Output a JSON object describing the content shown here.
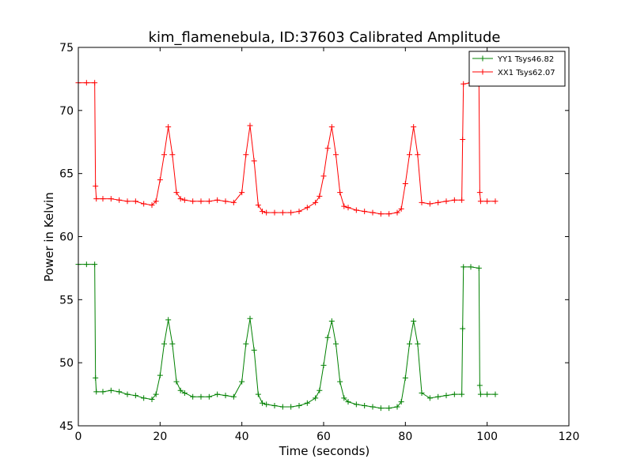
{
  "chart_data": {
    "type": "line",
    "title": "kim_flamenebula, ID:37603 Calibrated Amplitude",
    "xlabel": "Time (seconds)",
    "ylabel": "Power in Kelvin",
    "xlim": [
      0,
      120
    ],
    "ylim": [
      45,
      75
    ],
    "xticks": [
      0,
      20,
      40,
      60,
      80,
      100,
      120
    ],
    "yticks": [
      45,
      50,
      55,
      60,
      65,
      70,
      75
    ],
    "xtick_labels": [
      "0",
      "20",
      "40",
      "60",
      "80",
      "100",
      "120"
    ],
    "ytick_labels": [
      "45",
      "50",
      "55",
      "60",
      "65",
      "70",
      "75"
    ],
    "grid": false,
    "legend_position": "top-right",
    "marker": "plus",
    "series": [
      {
        "name": "YY1 Tsys46.82",
        "color": "#008000",
        "x": [
          0,
          2,
          4,
          4.2,
          4.4,
          6,
          8,
          10,
          12,
          14,
          16,
          18,
          19,
          20,
          21,
          22,
          23,
          24,
          25,
          26,
          28,
          30,
          32,
          34,
          36,
          38,
          40,
          41,
          42,
          43,
          44,
          45,
          46,
          48,
          50,
          52,
          54,
          56,
          58,
          59,
          60,
          61,
          62,
          63,
          64,
          65,
          66,
          68,
          70,
          72,
          74,
          76,
          78,
          79,
          80,
          81,
          82,
          83,
          84,
          86,
          88,
          90,
          92,
          93.8,
          94,
          94.2,
          96,
          98,
          98.2,
          98.4,
          100,
          102
        ],
        "y": [
          57.8,
          57.8,
          57.8,
          48.8,
          47.7,
          47.7,
          47.8,
          47.7,
          47.5,
          47.4,
          47.2,
          47.1,
          47.5,
          49.0,
          51.5,
          53.4,
          51.5,
          48.5,
          47.8,
          47.6,
          47.3,
          47.3,
          47.3,
          47.5,
          47.4,
          47.3,
          48.5,
          51.5,
          53.5,
          51.0,
          47.5,
          46.8,
          46.7,
          46.6,
          46.5,
          46.5,
          46.6,
          46.8,
          47.2,
          47.8,
          49.8,
          52.0,
          53.3,
          51.5,
          48.5,
          47.2,
          46.9,
          46.7,
          46.6,
          46.5,
          46.4,
          46.4,
          46.5,
          46.9,
          48.8,
          51.5,
          53.3,
          51.5,
          47.6,
          47.2,
          47.3,
          47.4,
          47.5,
          47.5,
          52.7,
          57.6,
          57.6,
          57.5,
          48.2,
          47.5,
          47.5,
          47.5
        ]
      },
      {
        "name": "XX1 Tsys62.07",
        "color": "#ff0000",
        "x": [
          0,
          2,
          4,
          4.2,
          4.4,
          6,
          8,
          10,
          12,
          14,
          16,
          18,
          19,
          20,
          21,
          22,
          23,
          24,
          25,
          26,
          28,
          30,
          32,
          34,
          36,
          38,
          40,
          41,
          42,
          43,
          44,
          45,
          46,
          48,
          50,
          52,
          54,
          56,
          58,
          59,
          60,
          61,
          62,
          63,
          64,
          65,
          66,
          68,
          70,
          72,
          74,
          76,
          78,
          79,
          80,
          81,
          82,
          83,
          84,
          86,
          88,
          90,
          92,
          93.8,
          94,
          94.2,
          96,
          98,
          98.2,
          98.4,
          100,
          102
        ],
        "y": [
          72.2,
          72.2,
          72.2,
          64.0,
          63.0,
          63.0,
          63.0,
          62.9,
          62.8,
          62.8,
          62.6,
          62.5,
          62.8,
          64.5,
          66.5,
          68.7,
          66.5,
          63.5,
          63.0,
          62.9,
          62.8,
          62.8,
          62.8,
          62.9,
          62.8,
          62.7,
          63.5,
          66.5,
          68.8,
          66.0,
          62.5,
          62.0,
          61.9,
          61.9,
          61.9,
          61.9,
          62.0,
          62.3,
          62.7,
          63.2,
          64.8,
          67.0,
          68.7,
          66.5,
          63.5,
          62.4,
          62.3,
          62.1,
          62.0,
          61.9,
          61.8,
          61.8,
          61.9,
          62.2,
          64.2,
          66.5,
          68.7,
          66.5,
          62.7,
          62.6,
          62.7,
          62.8,
          62.9,
          62.9,
          67.7,
          72.1,
          72.2,
          72.1,
          63.5,
          62.8,
          62.8,
          62.8
        ]
      }
    ]
  }
}
